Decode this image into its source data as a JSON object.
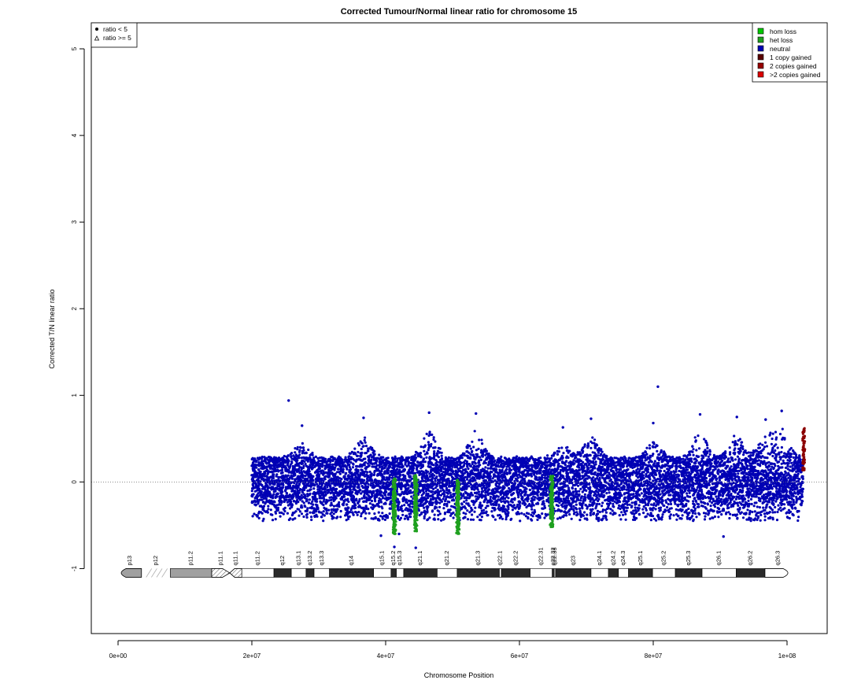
{
  "chart_data": {
    "type": "scatter",
    "title": "Corrected Tumour/Normal linear ratio for chromosome  15",
    "xlabel": "Chromosome Position",
    "ylabel": "Corrected T/N linear ratio",
    "xlim": [
      -4000000,
      106000000
    ],
    "ylim": [
      -1.75,
      5.3
    ],
    "x_ticks": [
      0,
      20000000,
      40000000,
      60000000,
      80000000,
      100000000
    ],
    "x_tick_labels": [
      "0e+00",
      "2e+07",
      "4e+07",
      "6e+07",
      "8e+07",
      "1e+08"
    ],
    "y_ticks": [
      -1,
      0,
      1,
      2,
      3,
      4,
      5
    ],
    "y_tick_labels": [
      "-1",
      "0",
      "1",
      "2",
      "3",
      "4",
      "5"
    ],
    "reference_line": {
      "y": 0,
      "style": "dotted"
    },
    "data_range_x": [
      20000000,
      102500000
    ],
    "shape_legend": {
      "position": "top-left",
      "entries": [
        {
          "symbol": "dot",
          "label": "ratio < 5"
        },
        {
          "symbol": "triangle",
          "label": "ratio >= 5"
        }
      ]
    },
    "state_legend": {
      "position": "top-right",
      "entries": [
        {
          "label": "hom loss",
          "color": "#00c800"
        },
        {
          "label": "het loss",
          "color": "#1fa01f"
        },
        {
          "label": "neutral",
          "color": "#0000b4"
        },
        {
          "label": "1 copy gained",
          "color": "#5a0000"
        },
        {
          "label": "2 copies gained",
          "color": "#960000"
        },
        {
          "label": ">2 copies gained",
          "color": "#dc0000"
        }
      ]
    },
    "series": [
      {
        "name": "neutral",
        "color": "#0000b4",
        "segments": [
          {
            "x_start": 20000000,
            "x_end": 102400000,
            "center": 0.0,
            "spread": 0.38
          }
        ],
        "outliers": [
          [
            25500000,
            0.94
          ],
          [
            80700000,
            1.1
          ],
          [
            41300000,
            -0.75
          ],
          [
            44500000,
            -0.76
          ],
          [
            90500000,
            -0.63
          ],
          [
            39300000,
            -0.62
          ],
          [
            42000000,
            -0.6
          ]
        ],
        "peaks": [
          [
            27500000,
            0.65
          ],
          [
            36700000,
            0.74
          ],
          [
            46500000,
            0.8
          ],
          [
            53500000,
            0.79
          ],
          [
            66500000,
            0.63
          ],
          [
            70700000,
            0.73
          ],
          [
            80000000,
            0.68
          ],
          [
            87000000,
            0.78
          ],
          [
            92500000,
            0.75
          ],
          [
            96800000,
            0.72
          ],
          [
            99200000,
            0.82
          ]
        ]
      },
      {
        "name": "het loss",
        "color": "#1fa01f",
        "bands": [
          {
            "x": 41300000,
            "y_min": -0.6,
            "y_max": 0.05
          },
          {
            "x": 44500000,
            "y_min": -0.58,
            "y_max": 0.08
          },
          {
            "x": 50800000,
            "y_min": -0.6,
            "y_max": 0.03
          },
          {
            "x": 64800000,
            "y_min": -0.52,
            "y_max": 0.07
          }
        ]
      },
      {
        "name": "1 copy gained",
        "color": "#8b0000",
        "bands": [
          {
            "x": 102500000,
            "y_min": 0.12,
            "y_max": 0.62
          }
        ]
      }
    ],
    "ideogram": {
      "y": -1.05,
      "bands": [
        {
          "name": "p13",
          "start": 0,
          "end": 3500000,
          "stain": "gvar"
        },
        {
          "name": "p12",
          "start": 3500000,
          "end": 7800000,
          "stain": "stalk"
        },
        {
          "name": "p11.2",
          "start": 7800000,
          "end": 14000000,
          "stain": "gvar"
        },
        {
          "name": "p11.1",
          "start": 14000000,
          "end": 16700000,
          "stain": "acen_hatched"
        },
        {
          "name": "q11.1",
          "start": 16700000,
          "end": 18500000,
          "stain": "acen_hatched"
        },
        {
          "name": "q11.2",
          "start": 18500000,
          "end": 23300000,
          "stain": "gneg"
        },
        {
          "name": "q12",
          "start": 23300000,
          "end": 25900000,
          "stain": "gpos"
        },
        {
          "name": "q13.1",
          "start": 25900000,
          "end": 28100000,
          "stain": "gneg"
        },
        {
          "name": "q13.2",
          "start": 28100000,
          "end": 29300000,
          "stain": "gpos"
        },
        {
          "name": "q13.3",
          "start": 29300000,
          "end": 31600000,
          "stain": "gneg"
        },
        {
          "name": "q14",
          "start": 31600000,
          "end": 38200000,
          "stain": "gpos"
        },
        {
          "name": "q15.1",
          "start": 38200000,
          "end": 40800000,
          "stain": "gneg"
        },
        {
          "name": "q15.2",
          "start": 40800000,
          "end": 41600000,
          "stain": "gpos"
        },
        {
          "name": "q15.3",
          "start": 41600000,
          "end": 42700000,
          "stain": "gneg"
        },
        {
          "name": "q21.1",
          "start": 42700000,
          "end": 47700000,
          "stain": "gpos"
        },
        {
          "name": "q21.2",
          "start": 47700000,
          "end": 50700000,
          "stain": "gneg"
        },
        {
          "name": "q21.3",
          "start": 50700000,
          "end": 57000000,
          "stain": "gpos"
        },
        {
          "name": "q22.1",
          "start": 57000000,
          "end": 57300000,
          "stain": "gneg"
        },
        {
          "name": "q22.2",
          "start": 57300000,
          "end": 61600000,
          "stain": "gpos"
        },
        {
          "name": "q22.31",
          "start": 61600000,
          "end": 64900000,
          "stain": "gneg"
        },
        {
          "name": "q22.32",
          "start": 64900000,
          "end": 65200000,
          "stain": "gpos"
        },
        {
          "name": "q22.33",
          "start": 65200000,
          "end": 65400000,
          "stain": "gneg"
        },
        {
          "name": "q23",
          "start": 65400000,
          "end": 70700000,
          "stain": "gpos"
        },
        {
          "name": "q24.1",
          "start": 70700000,
          "end": 73300000,
          "stain": "gneg"
        },
        {
          "name": "q24.2",
          "start": 73300000,
          "end": 74800000,
          "stain": "gpos"
        },
        {
          "name": "q24.3",
          "start": 74800000,
          "end": 76300000,
          "stain": "gneg"
        },
        {
          "name": "q25.1",
          "start": 76300000,
          "end": 79900000,
          "stain": "gpos"
        },
        {
          "name": "q25.2",
          "start": 79900000,
          "end": 83300000,
          "stain": "gneg"
        },
        {
          "name": "q25.3",
          "start": 83300000,
          "end": 87300000,
          "stain": "gpos"
        },
        {
          "name": "q26.1",
          "start": 87300000,
          "end": 92400000,
          "stain": "gneg"
        },
        {
          "name": "q26.2",
          "start": 92400000,
          "end": 96700000,
          "stain": "gpos"
        },
        {
          "name": "q26.3",
          "start": 96700000,
          "end": 100600000,
          "stain": "gneg"
        }
      ],
      "end_label_offsets": []
    }
  }
}
